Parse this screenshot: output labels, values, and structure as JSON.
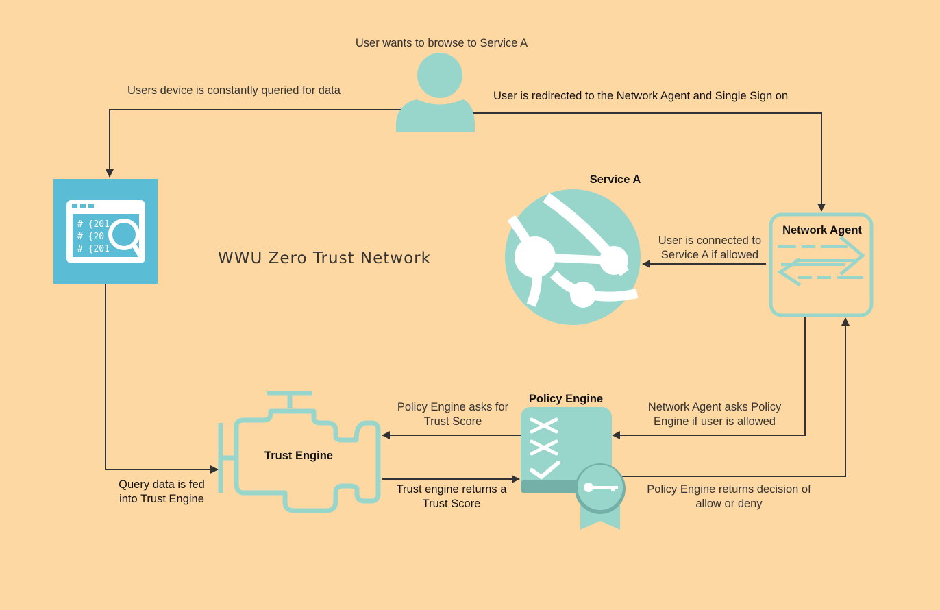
{
  "title": "WWU Zero Trust Network",
  "nodes": {
    "user": {
      "icon": "user-icon"
    },
    "device_monitor": {
      "icon": "code-search-icon",
      "code_lines": [
        "# {201",
        "# {20  )} /",
        "# {201"
      ]
    },
    "service_a": {
      "label": "Service A",
      "icon": "globe-network-icon"
    },
    "network_agent": {
      "label": "Network Agent",
      "icon": "arrows-exchange-icon"
    },
    "trust_engine": {
      "label": "Trust Engine",
      "icon": "engine-icon"
    },
    "policy_engine": {
      "label": "Policy Engine",
      "icon": "checklist-badge-icon"
    }
  },
  "edges": {
    "user_wants": "User wants to browse to Service A",
    "device_queried": "Users device is constantly queried for data",
    "redirected": "User is redirected to the Network Agent and Single Sign on",
    "connected": [
      "User is connected to",
      "Service A if allowed"
    ],
    "asks_policy": [
      "Network Agent asks Policy",
      "Engine if user is allowed"
    ],
    "asks_trust": [
      "Policy Engine asks for",
      "Trust Score"
    ],
    "query_fed": [
      "Query data is fed",
      "into Trust Engine"
    ],
    "returns_score": [
      "Trust engine returns a",
      "Trust Score"
    ],
    "returns_decision": [
      "Policy Engine returns decision of",
      "allow or deny"
    ]
  },
  "colors": {
    "background": "#fed8a3",
    "teal": "#98d6cc",
    "device_box": "#5bbcd6",
    "line": "#333333"
  }
}
